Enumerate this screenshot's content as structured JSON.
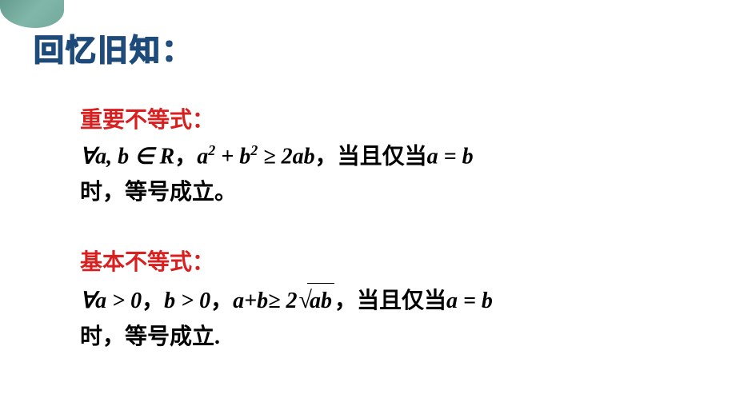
{
  "title": "回忆旧知：",
  "section1": {
    "heading": "重要不等式：",
    "line1_prefix": "∀",
    "line1_var1": "a",
    "line1_comma": ", ",
    "line1_var2": "b",
    "line1_in": " ∈ ",
    "line1_set": "R",
    "line1_cn_comma": "，",
    "line1_expr_a": "a",
    "line1_expr_sup1": "2",
    "line1_expr_plus": " + ",
    "line1_expr_b": "b",
    "line1_expr_sup2": "2",
    "line1_expr_ge": " ≥ ",
    "line1_expr_rhs": "2ab",
    "line1_cn_comma2": "，",
    "line1_cn_when": "当且仅当",
    "line1_cond": "a = b",
    "line2_cn": "时，等号成立。"
  },
  "section2": {
    "heading": "基本不等式：",
    "line1_prefix": "∀",
    "line1_a": "a",
    "line1_gt1": " > ",
    "line1_zero1": "0",
    "line1_cn_comma": "，",
    "line1_b": "b",
    "line1_gt2": " > ",
    "line1_zero2": "0",
    "line1_cn_comma2": "，",
    "line1_lhs": "a+b",
    "line1_ge": "≥ ",
    "line1_two": "2",
    "line1_sqrt_body": "ab",
    "line1_cn_comma3": "，",
    "line1_cn_when": "当且仅当",
    "line1_cond": "a = b",
    "line2_cn": "时，等号成立."
  },
  "colors": {
    "title_color": "#2a5c94",
    "heading_color": "#d82020",
    "text_color": "#000000",
    "background": "#ffffff"
  },
  "fonts": {
    "title_size": 38,
    "heading_size": 28,
    "body_size": 28
  }
}
